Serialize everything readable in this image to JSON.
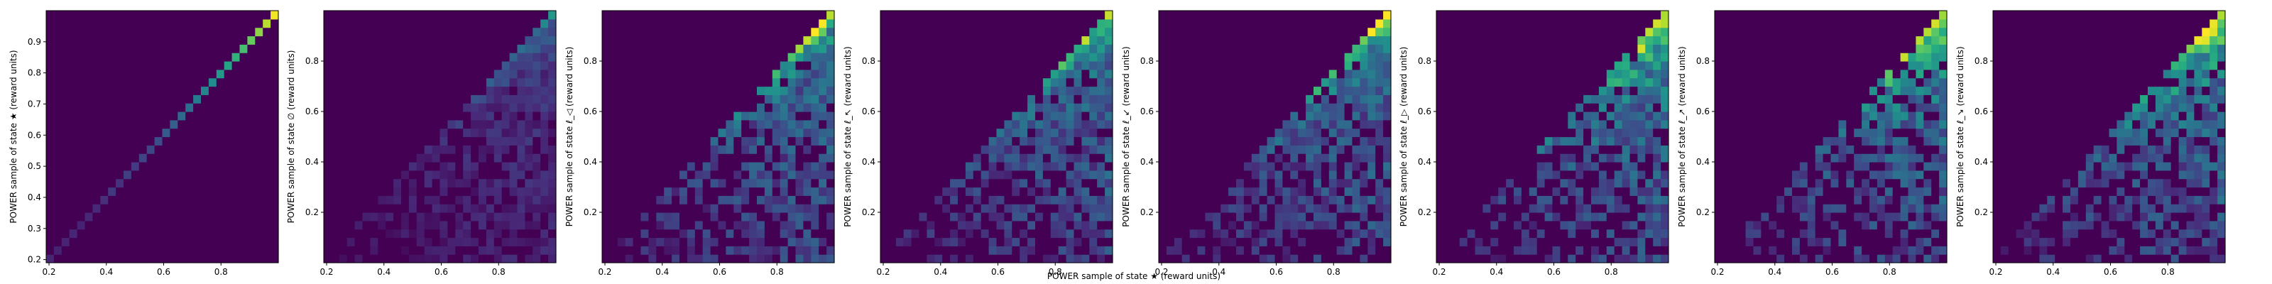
{
  "figure": {
    "xlabel": "POWER sample of state ★ (reward units)"
  },
  "chart_data": [
    {
      "type": "heatmap",
      "ylabel": "POWER sample of state ★ (reward units)",
      "xlim": [
        0.19,
        1.0
      ],
      "ylim": [
        0.19,
        1.0
      ],
      "xticks": [
        "0.2",
        "0.4",
        "0.6",
        "0.8"
      ],
      "yticks": [
        "0.2",
        "0.3",
        "0.4",
        "0.5",
        "0.6",
        "0.7",
        "0.8",
        "0.9"
      ],
      "colormap": "viridis",
      "pattern": "diagonal"
    },
    {
      "type": "heatmap",
      "ylabel": "POWER sample of state ∅ (reward units)",
      "xlim": [
        0.19,
        1.0
      ],
      "ylim": [
        0.0,
        1.0
      ],
      "xticks": [
        "0.2",
        "0.4",
        "0.6",
        "0.8"
      ],
      "yticks": [
        "0.2",
        "0.4",
        "0.6",
        "0.8"
      ],
      "colormap": "viridis",
      "pattern": "faint"
    },
    {
      "type": "heatmap",
      "ylabel": "POWER sample of state ℓ_◁ (reward units)",
      "xlim": [
        0.19,
        1.0
      ],
      "ylim": [
        0.0,
        1.0
      ],
      "xticks": [
        "0.2",
        "0.4",
        "0.6",
        "0.8"
      ],
      "yticks": [
        "0.2",
        "0.4",
        "0.6",
        "0.8"
      ],
      "colormap": "viridis",
      "pattern": "mid"
    },
    {
      "type": "heatmap",
      "ylabel": "POWER sample of state ℓ_↖ (reward units)",
      "xlim": [
        0.19,
        1.0
      ],
      "ylim": [
        0.0,
        1.0
      ],
      "xticks": [
        "0.2",
        "0.4",
        "0.6",
        "0.8"
      ],
      "yticks": [
        "0.2",
        "0.4",
        "0.6",
        "0.8"
      ],
      "colormap": "viridis",
      "pattern": "mid"
    },
    {
      "type": "heatmap",
      "ylabel": "POWER sample of state ℓ_↙ (reward units)",
      "xlim": [
        0.19,
        1.0
      ],
      "ylim": [
        0.0,
        1.0
      ],
      "xticks": [
        "0.2",
        "0.4",
        "0.6",
        "0.8"
      ],
      "yticks": [
        "0.2",
        "0.4",
        "0.6",
        "0.8"
      ],
      "colormap": "viridis",
      "pattern": "mid"
    },
    {
      "type": "heatmap",
      "ylabel": "POWER sample of state ℓ_▷ (reward units)",
      "xlim": [
        0.19,
        1.0
      ],
      "ylim": [
        0.0,
        1.0
      ],
      "xticks": [
        "0.2",
        "0.4",
        "0.6",
        "0.8"
      ],
      "yticks": [
        "0.2",
        "0.4",
        "0.6",
        "0.8"
      ],
      "colormap": "viridis",
      "pattern": "spread"
    },
    {
      "type": "heatmap",
      "ylabel": "POWER sample of state ℓ_↗ (reward units)",
      "xlim": [
        0.19,
        1.0
      ],
      "ylim": [
        0.0,
        1.0
      ],
      "xticks": [
        "0.2",
        "0.4",
        "0.6",
        "0.8"
      ],
      "yticks": [
        "0.2",
        "0.4",
        "0.6",
        "0.8"
      ],
      "colormap": "viridis",
      "pattern": "spread"
    },
    {
      "type": "heatmap",
      "ylabel": "POWER sample of state ℓ_↘ (reward units)",
      "xlim": [
        0.19,
        1.0
      ],
      "ylim": [
        0.0,
        1.0
      ],
      "xticks": [
        "0.2",
        "0.4",
        "0.6",
        "0.8"
      ],
      "yticks": [
        "0.2",
        "0.4",
        "0.6",
        "0.8"
      ],
      "colormap": "viridis",
      "pattern": "spread"
    }
  ]
}
